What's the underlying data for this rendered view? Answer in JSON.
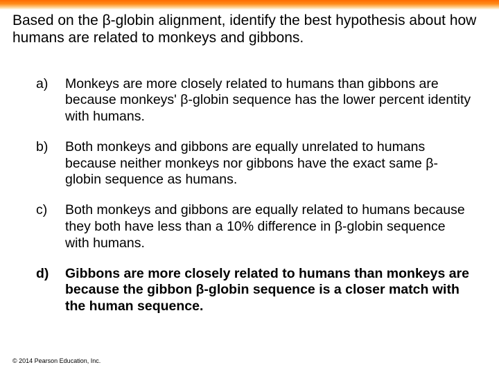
{
  "colors": {
    "gradient_top": "#ff6a00",
    "gradient_mid": "#ff8c1a",
    "gradient_fade": "#ffd9a0",
    "background": "#ffffff",
    "text": "#000000"
  },
  "question": "Based on the β-globin alignment, identify the best hypothesis about how humans are related to monkeys and gibbons.",
  "options": [
    {
      "letter": "a)",
      "text": "Monkeys are more closely related to humans than gibbons are because monkeys' β-globin sequence has the lower percent identity with humans.",
      "is_answer": false
    },
    {
      "letter": "b)",
      "text": "Both monkeys and gibbons are equally unrelated to humans because neither monkeys nor gibbons have the exact same β-globin sequence as humans.",
      "is_answer": false
    },
    {
      "letter": "c)",
      "text": "Both monkeys and gibbons are equally related to humans because they both have less than a 10% difference in β-globin sequence with humans.",
      "is_answer": false
    },
    {
      "letter": "d)",
      "text": "Gibbons are more closely related to humans than monkeys are because the gibbon β-globin sequence is a closer match with the human sequence.",
      "is_answer": true
    }
  ],
  "copyright": "© 2014 Pearson Education, Inc."
}
